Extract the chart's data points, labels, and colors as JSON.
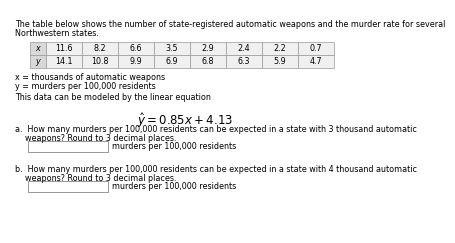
{
  "title_line1": "The table below shows the number of state-registered automatic weapons and the murder rate for several",
  "title_line2": "Northwestern states.",
  "x_values": [
    "11.6",
    "8.2",
    "6.6",
    "3.5",
    "2.9",
    "2.4",
    "2.2",
    "0.7"
  ],
  "y_values": [
    "14.1",
    "10.8",
    "9.9",
    "6.9",
    "6.8",
    "6.3",
    "5.9",
    "4.7"
  ],
  "x_label_row": "x",
  "y_label_row": "y",
  "x_def": "x = thousands of automatic weapons",
  "y_def": "y = murders per 100,000 residents",
  "model_intro": "This data can be modeled by the linear equation",
  "equation": "$\\hat{y} = 0.85x + 4.13$",
  "part_a_q1": "a.  How many murders per 100,000 residents can be expected in a state with 3 thousand automatic",
  "part_a_q2": "    weapons? Round to 3 decimal places.",
  "part_b_q1": "b.  How many murders per 100,000 residents can be expected in a state with 4 thousand automatic",
  "part_b_q2": "    weapons? Round to 3 decimal places.",
  "answer_label": "murders per 100,000 residents",
  "bg_color": "#ffffff",
  "text_color": "#000000",
  "font_size": 5.8,
  "eq_font_size": 8.5
}
